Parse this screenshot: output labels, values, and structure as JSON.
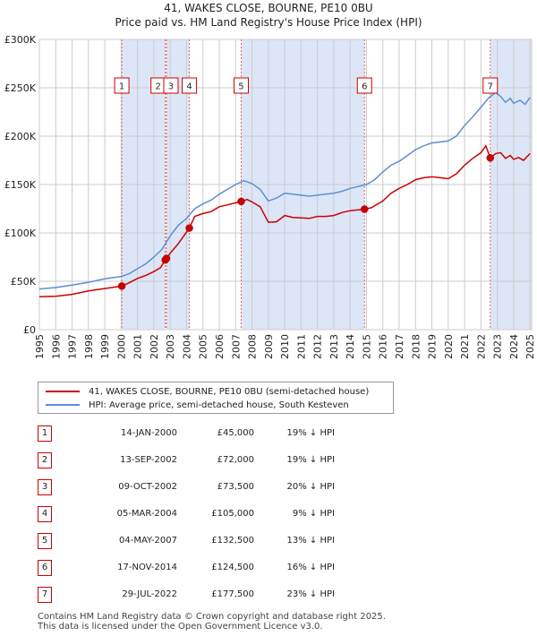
{
  "title_line1": "41, WAKES CLOSE, BOURNE, PE10 0BU",
  "title_line2": "Price paid vs. HM Land Registry's House Price Index (HPI)",
  "legend": {
    "property_label": "41, WAKES CLOSE, BOURNE, PE10 0BU (semi-detached house)",
    "hpi_label": "HPI: Average price, semi-detached house, South Kesteven"
  },
  "colors": {
    "property": "#cc0000",
    "hpi": "#5b8fd6",
    "shade": "#dde6f7"
  },
  "transactions": [
    {
      "num": "1",
      "date": "14-JAN-2000",
      "price": "£45,000",
      "hpi_diff": "19% ↓ HPI"
    },
    {
      "num": "2",
      "date": "13-SEP-2002",
      "price": "£72,000",
      "hpi_diff": "19% ↓ HPI"
    },
    {
      "num": "3",
      "date": "09-OCT-2002",
      "price": "£73,500",
      "hpi_diff": "20% ↓ HPI"
    },
    {
      "num": "4",
      "date": "05-MAR-2004",
      "price": "£105,000",
      "hpi_diff": "9% ↓ HPI"
    },
    {
      "num": "5",
      "date": "04-MAY-2007",
      "price": "£132,500",
      "hpi_diff": "13% ↓ HPI"
    },
    {
      "num": "6",
      "date": "17-NOV-2014",
      "price": "£124,500",
      "hpi_diff": "16% ↓ HPI"
    },
    {
      "num": "7",
      "date": "29-JUL-2022",
      "price": "£177,500",
      "hpi_diff": "23% ↓ HPI"
    }
  ],
  "footer_line1": "Contains HM Land Registry data © Crown copyright and database right 2025.",
  "footer_line2": "This data is licensed under the Open Government Licence v3.0.",
  "chart_data": {
    "type": "line",
    "title": "41, WAKES CLOSE, BOURNE, PE10 0BU",
    "subtitle": "Price paid vs. HM Land Registry's House Price Index (HPI)",
    "xlabel": "",
    "ylabel": "",
    "xlim": [
      1995,
      2025.1
    ],
    "ylim": [
      0,
      300000
    ],
    "yticks": [
      {
        "value": 0,
        "label": "£0"
      },
      {
        "value": 50000,
        "label": "£50K"
      },
      {
        "value": 100000,
        "label": "£100K"
      },
      {
        "value": 150000,
        "label": "£150K"
      },
      {
        "value": 200000,
        "label": "£200K"
      },
      {
        "value": 250000,
        "label": "£250K"
      },
      {
        "value": 300000,
        "label": "£300K"
      }
    ],
    "xticks": [
      "1995",
      "1996",
      "1997",
      "1998",
      "1999",
      "2000",
      "2001",
      "2002",
      "2003",
      "2004",
      "2005",
      "2006",
      "2007",
      "2008",
      "2009",
      "2010",
      "2011",
      "2012",
      "2013",
      "2014",
      "2015",
      "2016",
      "2017",
      "2018",
      "2019",
      "2020",
      "2021",
      "2022",
      "2023",
      "2024",
      "2025"
    ],
    "grid": true,
    "shaded_periods": [
      [
        2000.04,
        2002.7
      ],
      [
        2002.77,
        2004.17
      ],
      [
        2007.34,
        2014.88
      ],
      [
        2022.57,
        2025.1
      ]
    ],
    "series": [
      {
        "name": "41, WAKES CLOSE, BOURNE, PE10 0BU (semi-detached house)",
        "color": "#cc0000",
        "points": [
          [
            1995,
            34000
          ],
          [
            1996,
            34500
          ],
          [
            1997,
            36500
          ],
          [
            1998,
            40000
          ],
          [
            1999,
            42500
          ],
          [
            2000.04,
            45000
          ],
          [
            2000.5,
            48500
          ],
          [
            2001,
            53000
          ],
          [
            2001.5,
            56000
          ],
          [
            2002,
            60000
          ],
          [
            2002.4,
            64000
          ],
          [
            2002.7,
            72000
          ],
          [
            2002.77,
            73500
          ],
          [
            2003,
            79000
          ],
          [
            2003.5,
            89000
          ],
          [
            2004.17,
            105000
          ],
          [
            2004.5,
            117000
          ],
          [
            2005,
            120000
          ],
          [
            2005.5,
            122000
          ],
          [
            2006,
            127000
          ],
          [
            2006.5,
            129000
          ],
          [
            2007.34,
            132500
          ],
          [
            2007.7,
            134500
          ],
          [
            2008,
            132000
          ],
          [
            2008.5,
            127000
          ],
          [
            2009,
            111000
          ],
          [
            2009.5,
            111500
          ],
          [
            2010,
            118000
          ],
          [
            2010.5,
            116000
          ],
          [
            2011,
            115500
          ],
          [
            2011.5,
            115000
          ],
          [
            2012,
            117000
          ],
          [
            2012.5,
            117000
          ],
          [
            2013,
            118000
          ],
          [
            2013.5,
            121000
          ],
          [
            2014,
            123000
          ],
          [
            2014.88,
            124500
          ],
          [
            2015.3,
            126000
          ],
          [
            2016,
            133000
          ],
          [
            2016.5,
            141000
          ],
          [
            2017,
            146000
          ],
          [
            2017.5,
            150000
          ],
          [
            2018,
            155000
          ],
          [
            2018.5,
            157000
          ],
          [
            2019,
            158000
          ],
          [
            2019.5,
            157000
          ],
          [
            2020,
            156000
          ],
          [
            2020.5,
            161000
          ],
          [
            2021,
            170000
          ],
          [
            2021.5,
            177000
          ],
          [
            2022,
            183000
          ],
          [
            2022.3,
            190000
          ],
          [
            2022.57,
            177500
          ],
          [
            2022.9,
            182000
          ],
          [
            2023.2,
            183000
          ],
          [
            2023.5,
            177000
          ],
          [
            2023.8,
            180000
          ],
          [
            2024,
            176000
          ],
          [
            2024.3,
            178000
          ],
          [
            2024.6,
            175000
          ],
          [
            2025,
            182000
          ]
        ]
      },
      {
        "name": "HPI: Average price, semi-detached house, South Kesteven",
        "color": "#5b8fd6",
        "points": [
          [
            1995,
            42000
          ],
          [
            1996,
            43500
          ],
          [
            1997,
            46000
          ],
          [
            1998,
            49000
          ],
          [
            1999,
            52500
          ],
          [
            2000,
            55000
          ],
          [
            2000.5,
            58000
          ],
          [
            2001,
            63000
          ],
          [
            2001.5,
            68000
          ],
          [
            2002,
            75000
          ],
          [
            2002.5,
            83000
          ],
          [
            2003,
            97000
          ],
          [
            2003.5,
            108000
          ],
          [
            2004,
            115000
          ],
          [
            2004.5,
            125000
          ],
          [
            2005,
            130000
          ],
          [
            2005.5,
            134000
          ],
          [
            2006,
            140000
          ],
          [
            2006.5,
            145000
          ],
          [
            2007,
            150000
          ],
          [
            2007.5,
            154000
          ],
          [
            2008,
            151000
          ],
          [
            2008.5,
            145000
          ],
          [
            2009,
            133000
          ],
          [
            2009.5,
            136000
          ],
          [
            2010,
            141000
          ],
          [
            2010.5,
            140000
          ],
          [
            2011,
            139000
          ],
          [
            2011.5,
            138000
          ],
          [
            2012,
            139000
          ],
          [
            2012.5,
            140000
          ],
          [
            2013,
            141000
          ],
          [
            2013.5,
            143000
          ],
          [
            2014,
            146000
          ],
          [
            2014.5,
            148000
          ],
          [
            2015,
            150000
          ],
          [
            2015.5,
            155000
          ],
          [
            2016,
            163000
          ],
          [
            2016.5,
            170000
          ],
          [
            2017,
            174000
          ],
          [
            2017.5,
            180000
          ],
          [
            2018,
            186000
          ],
          [
            2018.5,
            190000
          ],
          [
            2019,
            193000
          ],
          [
            2019.5,
            194000
          ],
          [
            2020,
            195000
          ],
          [
            2020.5,
            200000
          ],
          [
            2021,
            211000
          ],
          [
            2021.5,
            220000
          ],
          [
            2022,
            230000
          ],
          [
            2022.5,
            240000
          ],
          [
            2022.9,
            245000
          ],
          [
            2023.2,
            241000
          ],
          [
            2023.5,
            235000
          ],
          [
            2023.8,
            239000
          ],
          [
            2024,
            234000
          ],
          [
            2024.4,
            237000
          ],
          [
            2024.7,
            233000
          ],
          [
            2025,
            240000
          ]
        ]
      }
    ],
    "markers": [
      {
        "label": "1",
        "x": 2000.04,
        "y": 45000
      },
      {
        "label": "2",
        "x": 2002.7,
        "y": 72000
      },
      {
        "label": "3",
        "x": 2002.77,
        "y": 73500
      },
      {
        "label": "4",
        "x": 2004.17,
        "y": 105000
      },
      {
        "label": "5",
        "x": 2007.34,
        "y": 132500
      },
      {
        "label": "6",
        "x": 2014.88,
        "y": 124500
      },
      {
        "label": "7",
        "x": 2022.57,
        "y": 177500
      }
    ]
  }
}
